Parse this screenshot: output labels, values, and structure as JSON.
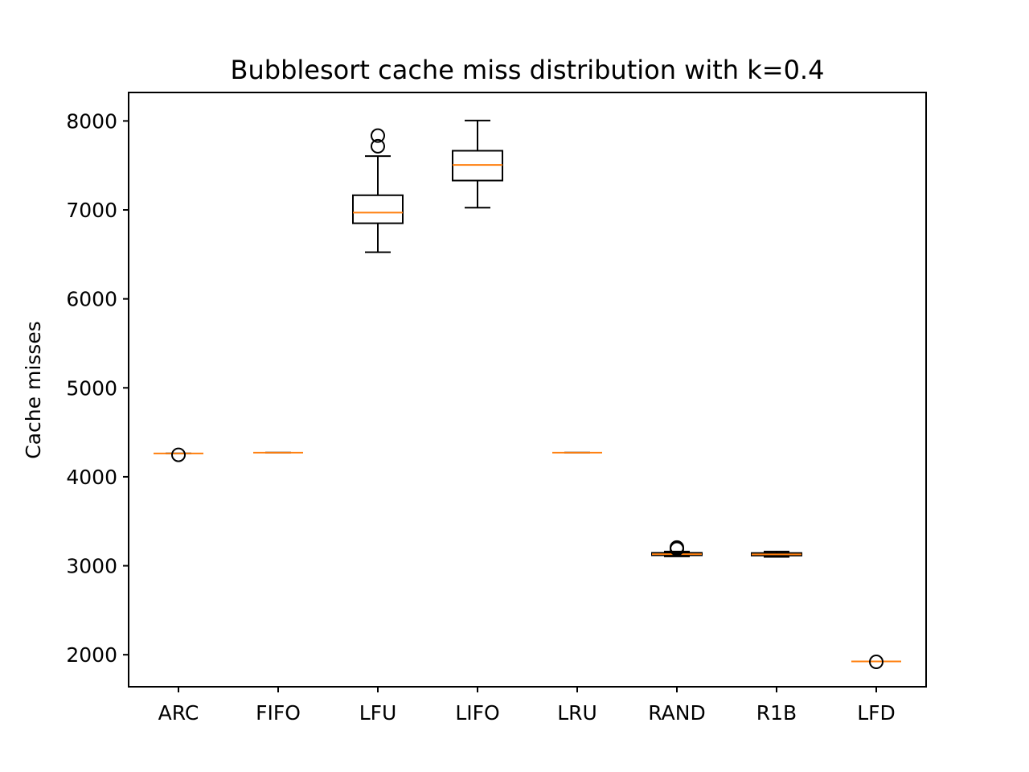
{
  "chart_data": {
    "type": "boxplot",
    "title": "Bubblesort cache miss distribution with k=0.4",
    "xlabel": "",
    "ylabel": "Cache misses",
    "ylim": [
      1640,
      8320
    ],
    "yticks": [
      2000,
      3000,
      4000,
      5000,
      6000,
      7000,
      8000
    ],
    "grid": false,
    "legend": "none",
    "categories": [
      "ARC",
      "FIFO",
      "LFU",
      "LIFO",
      "LRU",
      "RAND",
      "R1B",
      "LFD"
    ],
    "boxes": [
      {
        "name": "ARC",
        "whisker_low": 4262,
        "q1": 4262,
        "median": 4262,
        "q3": 4262,
        "whisker_high": 4262,
        "outliers": [
          4247
        ]
      },
      {
        "name": "FIFO",
        "whisker_low": 4272,
        "q1": 4272,
        "median": 4272,
        "q3": 4272,
        "whisker_high": 4272,
        "outliers": []
      },
      {
        "name": "LFU",
        "whisker_low": 6525,
        "q1": 6850,
        "median": 6970,
        "q3": 7165,
        "whisker_high": 7605,
        "outliers": [
          7715,
          7835
        ]
      },
      {
        "name": "LIFO",
        "whisker_low": 7025,
        "q1": 7330,
        "median": 7505,
        "q3": 7665,
        "whisker_high": 8005,
        "outliers": []
      },
      {
        "name": "LRU",
        "whisker_low": 4272,
        "q1": 4272,
        "median": 4272,
        "q3": 4272,
        "whisker_high": 4272,
        "outliers": []
      },
      {
        "name": "RAND",
        "whisker_low": 3105,
        "q1": 3118,
        "median": 3130,
        "q3": 3145,
        "whisker_high": 3160,
        "outliers": [
          3190,
          3205
        ]
      },
      {
        "name": "R1B",
        "whisker_low": 3100,
        "q1": 3115,
        "median": 3128,
        "q3": 3143,
        "whisker_high": 3160,
        "outliers": []
      },
      {
        "name": "LFD",
        "whisker_low": 1925,
        "q1": 1925,
        "median": 1925,
        "q3": 1925,
        "whisker_high": 1925,
        "outliers": [
          1920
        ]
      }
    ],
    "colors": {
      "box": "#000000",
      "median": "#ff7f0e",
      "flier": "#000000"
    }
  }
}
